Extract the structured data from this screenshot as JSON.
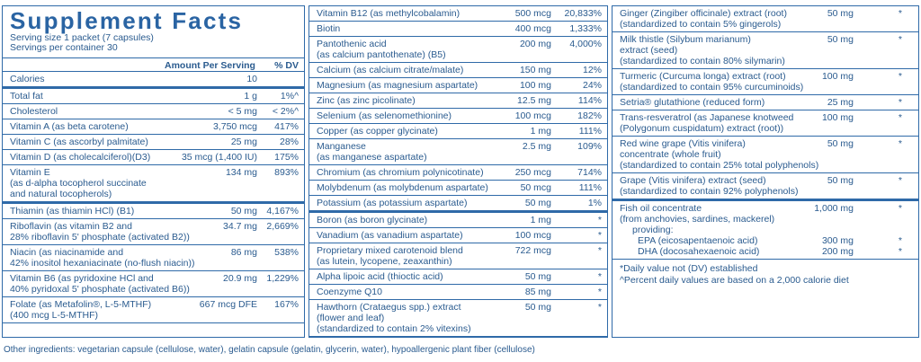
{
  "title": "Supplement Facts",
  "serving_size": "Serving size  1 packet (7 capsules)",
  "servings_per_container": "Servings per container  30",
  "header": {
    "amount": "Amount Per Serving",
    "dv": "% DV"
  },
  "col1": [
    {
      "name": "Calories",
      "amount": "10",
      "dv": ""
    },
    {
      "name": "Total fat",
      "amount": "1 g",
      "dv": "1%^"
    },
    {
      "name": "Cholesterol",
      "amount": "< 5 mg",
      "dv": "< 2%^"
    },
    {
      "name": "Vitamin A (as beta carotene)",
      "amount": "3,750 mcg",
      "dv": "417%"
    },
    {
      "name": "Vitamin C (as ascorbyl palmitate)",
      "amount": "25 mg",
      "dv": "28%"
    },
    {
      "name": "Vitamin D (as cholecalciferol)(D3)",
      "amount": "35 mcg (1,400 IU)",
      "dv": "175%"
    },
    {
      "name": "Vitamin E",
      "sub": [
        "(as d-alpha tocopherol succinate",
        "and natural tocopherols)"
      ],
      "amount": "134 mg",
      "dv": "893%"
    },
    {
      "name": "Thiamin (as thiamin HCl) (B1)",
      "amount": "50 mg",
      "dv": "4,167%"
    },
    {
      "name": "Riboflavin (as vitamin B2 and",
      "sub": [
        "28% riboflavin 5' phosphate (activated B2))"
      ],
      "amount": "34.7 mg",
      "dv": "2,669%"
    },
    {
      "name": "Niacin (as niacinamide and",
      "sub": [
        "42% inositol hexaniacinate (no-flush niacin))"
      ],
      "amount": "86 mg",
      "dv": "538%"
    },
    {
      "name": "Vitamin B6 (as pyridoxine HCl and",
      "sub": [
        "40% pyridoxal 5' phosphate (activated B6))"
      ],
      "amount": "20.9 mg",
      "dv": "1,229%"
    },
    {
      "name": "Folate (as Metafolin®, L-5-MTHF)",
      "sub": [
        "(400 mcg L-5-MTHF)"
      ],
      "amount": "667 mcg DFE",
      "dv": "167%"
    }
  ],
  "col2": [
    {
      "name": "Vitamin B12 (as methylcobalamin)",
      "amount": "500 mcg",
      "dv": "20,833%"
    },
    {
      "name": "Biotin",
      "amount": "400 mcg",
      "dv": "1,333%"
    },
    {
      "name": "Pantothenic acid",
      "sub": [
        "(as calcium pantothenate) (B5)"
      ],
      "amount": "200 mg",
      "dv": "4,000%"
    },
    {
      "name": "Calcium (as calcium citrate/malate)",
      "amount": "150 mg",
      "dv": "12%"
    },
    {
      "name": "Magnesium (as magnesium aspartate)",
      "amount": "100 mg",
      "dv": "24%"
    },
    {
      "name": "Zinc (as zinc picolinate)",
      "amount": "12.5 mg",
      "dv": "114%"
    },
    {
      "name": "Selenium (as selenomethionine)",
      "amount": "100 mcg",
      "dv": "182%"
    },
    {
      "name": "Copper (as copper glycinate)",
      "amount": "1 mg",
      "dv": "111%"
    },
    {
      "name": "Manganese",
      "sub": [
        "(as manganese aspartate)"
      ],
      "amount": "2.5 mg",
      "dv": "109%"
    },
    {
      "name": "Chromium (as chromium polynicotinate)",
      "amount": "250 mcg",
      "dv": "714%"
    },
    {
      "name": "Molybdenum (as molybdenum aspartate)",
      "amount": "50 mcg",
      "dv": "111%"
    },
    {
      "name": "Potassium (as potassium aspartate)",
      "amount": "50 mg",
      "dv": "1%"
    },
    {
      "name": "Boron (as boron glycinate)",
      "amount": "1 mg",
      "dv": "*"
    },
    {
      "name": "Vanadium (as vanadium aspartate)",
      "amount": "100 mcg",
      "dv": "*"
    },
    {
      "name": "Proprietary mixed carotenoid blend",
      "sub": [
        "(as lutein, lycopene, zeaxanthin)"
      ],
      "amount": "722 mcg",
      "dv": "*"
    },
    {
      "name": "Alpha lipoic acid (thioctic acid)",
      "amount": "50 mg",
      "dv": "*"
    },
    {
      "name": "Coenzyme Q10",
      "amount": "85 mg",
      "dv": "*"
    },
    {
      "name": "Hawthorn (Crataegus spp.) extract",
      "sub": [
        "(flower and leaf)",
        "(standardized to contain 2% vitexins)"
      ],
      "amount": "50 mg",
      "dv": "*"
    }
  ],
  "col3": [
    {
      "name": "Ginger (Zingiber officinale) extract (root)",
      "sub": [
        "(standardized to contain 5% gingerols)"
      ],
      "amount": "50 mg",
      "dv": "*"
    },
    {
      "name": "Milk thistle (Silybum marianum)",
      "sub": [
        "extract (seed)",
        "(standardized to contain 80% silymarin)"
      ],
      "amount": "50 mg",
      "dv": "*"
    },
    {
      "name": "Turmeric (Curcuma longa) extract (root)",
      "sub": [
        "(standardized to contain 95% curcuminoids)"
      ],
      "amount": "100 mg",
      "dv": "*"
    },
    {
      "name": "Setria® glutathione (reduced form)",
      "amount": "25 mg",
      "dv": "*"
    },
    {
      "name": "Trans-resveratrol (as Japanese knotweed",
      "sub": [
        "(Polygonum cuspidatum) extract (root))"
      ],
      "amount": "100 mg",
      "dv": "*"
    },
    {
      "name": "Red wine grape (Vitis vinifera)",
      "sub": [
        "concentrate (whole fruit)",
        "(standardized to contain 25% total polyphenols)"
      ],
      "amount": "50 mg",
      "dv": "*"
    },
    {
      "name": "Grape (Vitis vinifera) extract (seed)",
      "sub": [
        "(standardized to contain 92% polyphenols)"
      ],
      "amount": "50 mg",
      "dv": "*"
    }
  ],
  "fish_oil": {
    "name": "Fish oil concentrate",
    "amount": "1,000 mg",
    "dv": "*",
    "from": "(from anchovies, sardines, mackerel)",
    "providing": "providing:",
    "epa": {
      "name": "EPA (eicosapentaenoic acid)",
      "amount": "300 mg",
      "dv": "*"
    },
    "dha": {
      "name": "DHA (docosahexaenoic acid)",
      "amount": "200 mg",
      "dv": "*"
    }
  },
  "footnotes": [
    "*Daily value not (DV) established",
    "^Percent daily values are based on a 2,000 calorie diet"
  ],
  "other_ingredients": "Other ingredients: vegetarian capsule (cellulose, water), gelatin capsule (gelatin, glycerin, water), hypoallergenic plant fiber (cellulose)"
}
